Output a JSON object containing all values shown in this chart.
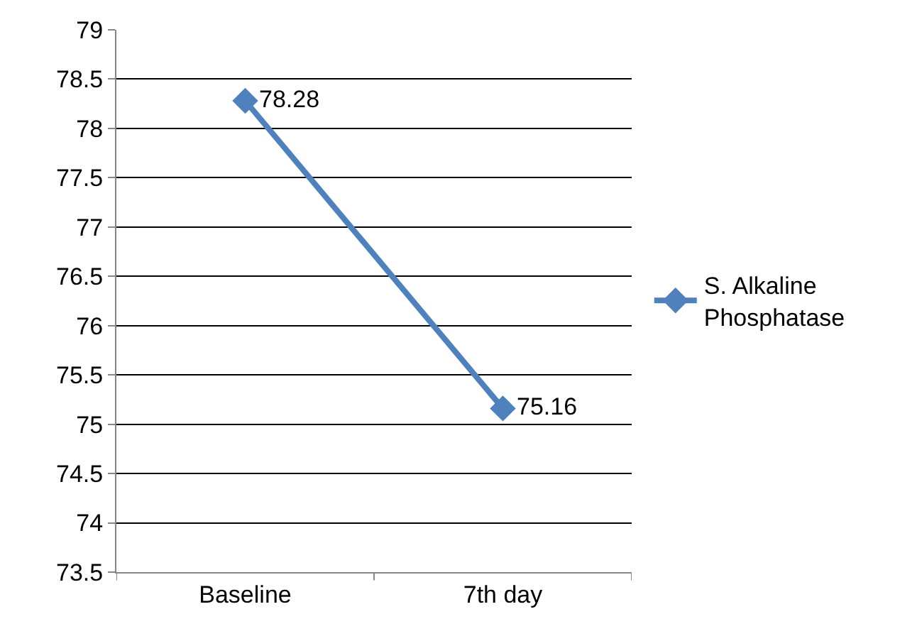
{
  "chart_data": {
    "type": "line",
    "categories": [
      "Baseline",
      "7th day"
    ],
    "series": [
      {
        "name": "S. Alkaline Phosphatase",
        "color": "#4f81bd",
        "values": [
          78.28,
          75.16
        ]
      }
    ],
    "ylim": [
      73.5,
      79
    ],
    "yticks": [
      73.5,
      74,
      74.5,
      75,
      75.5,
      76,
      76.5,
      77,
      77.5,
      78,
      78.5,
      79
    ],
    "grid": "y",
    "legend": "right",
    "marker": "diamond",
    "line_style": "solid",
    "data_labels": true
  }
}
